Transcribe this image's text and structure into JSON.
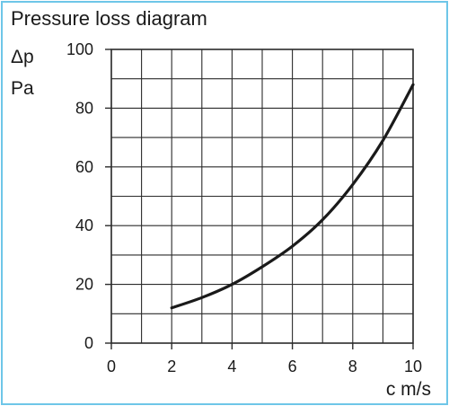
{
  "chart_data": {
    "type": "line",
    "title": "Pressure loss diagram",
    "ylabel_symbol": "Δp",
    "ylabel_unit": "Pa",
    "xlabel": "c m/s",
    "xlim": [
      0,
      10
    ],
    "ylim": [
      0,
      100
    ],
    "x_ticks": [
      "0",
      "2",
      "4",
      "6",
      "8",
      "10"
    ],
    "y_ticks": [
      "0",
      "20",
      "40",
      "60",
      "80",
      "100"
    ],
    "grid": true,
    "series": [
      {
        "x": [
          2,
          3,
          4,
          5,
          6,
          7,
          8,
          9,
          10
        ],
        "values": [
          12,
          15.5,
          20,
          26,
          33,
          42,
          54,
          69,
          88
        ]
      }
    ],
    "colors": {
      "frame": "#6ec6e8",
      "line": "#1a1a1a",
      "grid": "#2b2b2b"
    }
  }
}
